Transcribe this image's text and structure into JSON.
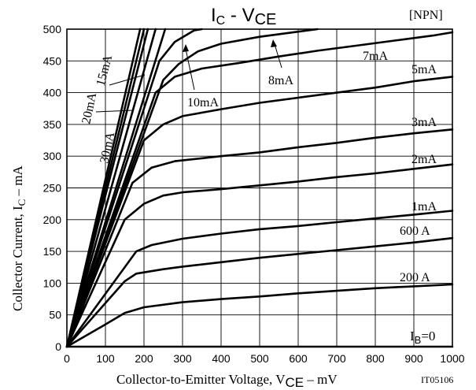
{
  "chart_data": {
    "type": "line",
    "title_main": "I",
    "title_sub": "C",
    "title_mid": " - V",
    "title_sub2": "CE",
    "tag": "[NPN]",
    "figure_code": "IT05106",
    "xlabel_pre": "Collector-to-Emitter Voltage, V",
    "xlabel_sub": "CE",
    "xlabel_post": " – mV",
    "ylabel_pre": "Collector Current, I",
    "ylabel_sub": "C",
    "ylabel_post": " – mA",
    "xlim": [
      0,
      1000
    ],
    "ylim": [
      0,
      500
    ],
    "x_ticks": [
      "0",
      "100",
      "200",
      "300",
      "400",
      "500",
      "600",
      "700",
      "800",
      "900",
      "1000"
    ],
    "y_ticks": [
      "0",
      "50",
      "100",
      "150",
      "200",
      "250",
      "300",
      "350",
      "400",
      "450",
      "500"
    ],
    "grid": true,
    "series": [
      {
        "name": "30mA",
        "x": [
          0,
          210
        ],
        "y": [
          0,
          500
        ]
      },
      {
        "name": "20mA",
        "x": [
          0,
          200
        ],
        "y": [
          0,
          500
        ]
      },
      {
        "name": "15mA",
        "x": [
          0,
          190
        ],
        "y": [
          0,
          500
        ]
      },
      {
        "name": "30mA-b",
        "x": [
          0,
          230
        ],
        "y": [
          0,
          500
        ]
      },
      {
        "name": "20mA-b",
        "x": [
          0,
          255
        ],
        "y": [
          0,
          500
        ]
      },
      {
        "name": "10mA",
        "x": [
          0,
          240,
          280,
          330,
          350
        ],
        "y": [
          0,
          450,
          480,
          498,
          500
        ]
      },
      {
        "name": "8mA",
        "x": [
          0,
          250,
          290,
          340,
          400,
          500,
          600,
          650
        ],
        "y": [
          0,
          420,
          445,
          465,
          477,
          488,
          496,
          500
        ]
      },
      {
        "name": "7mA",
        "x": [
          0,
          230,
          280,
          350,
          450,
          550,
          650,
          750,
          850,
          950,
          1000
        ],
        "y": [
          0,
          400,
          425,
          438,
          447,
          457,
          466,
          474,
          482,
          490,
          495
        ]
      },
      {
        "name": "5mA",
        "x": [
          0,
          200,
          250,
          300,
          400,
          500,
          600,
          700,
          800,
          900,
          1000
        ],
        "y": [
          0,
          325,
          350,
          363,
          374,
          384,
          392,
          400,
          408,
          418,
          425
        ]
      },
      {
        "name": "3mA",
        "x": [
          0,
          170,
          220,
          280,
          400,
          500,
          600,
          700,
          800,
          900,
          1000
        ],
        "y": [
          0,
          258,
          282,
          292,
          300,
          306,
          314,
          321,
          329,
          336,
          342
        ]
      },
      {
        "name": "2mA",
        "x": [
          0,
          150,
          200,
          250,
          300,
          400,
          500,
          600,
          700,
          800,
          900,
          1000
        ],
        "y": [
          0,
          200,
          225,
          238,
          243,
          248,
          254,
          260,
          267,
          273,
          280,
          287
        ]
      },
      {
        "name": "1mA",
        "x": [
          0,
          180,
          220,
          300,
          400,
          500,
          600,
          700,
          800,
          900,
          1000
        ],
        "y": [
          0,
          150,
          160,
          170,
          178,
          185,
          190,
          196,
          202,
          208,
          214
        ]
      },
      {
        "name": "600 A",
        "x": [
          0,
          150,
          180,
          250,
          300,
          400,
          500,
          600,
          700,
          800,
          900,
          1000
        ],
        "y": [
          0,
          103,
          115,
          122,
          126,
          133,
          140,
          146,
          152,
          158,
          164,
          171
        ]
      },
      {
        "name": "200 A",
        "x": [
          0,
          100,
          150,
          200,
          300,
          400,
          500,
          600,
          700,
          800,
          900,
          1000
        ],
        "y": [
          0,
          35,
          53,
          62,
          70,
          75,
          79,
          84,
          88,
          92,
          95,
          98
        ]
      },
      {
        "name": "IB=0",
        "x": [
          0,
          1000
        ],
        "y": [
          0,
          0
        ]
      }
    ],
    "labels": {
      "l30": "30mA",
      "l20": "20mA",
      "l15": "15mA",
      "l10": "10mA",
      "l8": "8mA",
      "l7": "7mA",
      "l5": "5mA",
      "l3": "3mA",
      "l2": "2mA",
      "l1": "1mA",
      "l600": "600 A",
      "l200": "200 A",
      "lib": "I",
      "lib_sub": "B",
      "lib_post": "=0"
    }
  }
}
